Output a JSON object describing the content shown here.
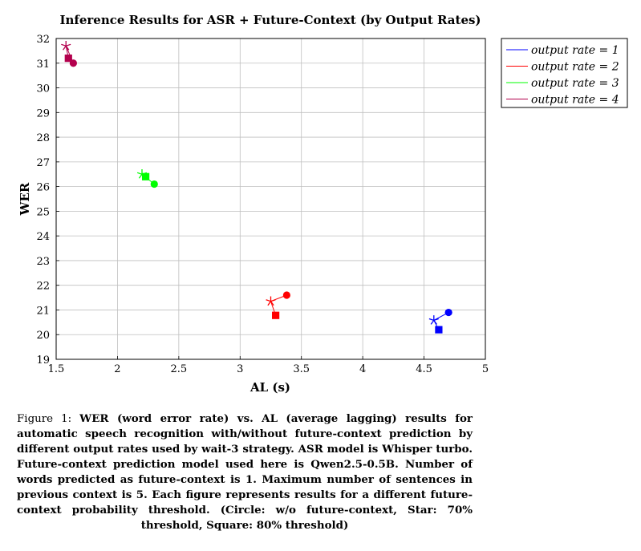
{
  "chart_data": {
    "type": "scatter",
    "title": "Inference Results for ASR + Future-Context (by Output Rates)",
    "xlabel": "AL (s)",
    "ylabel": "WER",
    "xlim": [
      1.5,
      5
    ],
    "ylim": [
      19,
      32
    ],
    "x_ticks": [
      "1.5",
      "2",
      "2.5",
      "3",
      "3.5",
      "4",
      "4.5",
      "5"
    ],
    "y_ticks": [
      "19",
      "20",
      "21",
      "22",
      "23",
      "24",
      "25",
      "26",
      "27",
      "28",
      "29",
      "30",
      "31",
      "32"
    ],
    "grid": true,
    "legend_position": "outside-right-top",
    "series": [
      {
        "name": "output rate = 1",
        "color": "#0000ff",
        "points": [
          {
            "marker": "circle",
            "x": 4.7,
            "y": 20.9
          },
          {
            "marker": "star",
            "x": 4.58,
            "y": 20.58
          },
          {
            "marker": "square",
            "x": 4.62,
            "y": 20.2
          }
        ]
      },
      {
        "name": "output rate = 2",
        "color": "#ff0000",
        "points": [
          {
            "marker": "circle",
            "x": 3.38,
            "y": 21.6
          },
          {
            "marker": "star",
            "x": 3.25,
            "y": 21.35
          },
          {
            "marker": "square",
            "x": 3.29,
            "y": 20.78
          }
        ]
      },
      {
        "name": "output rate = 3",
        "color": "#00ff00",
        "points": [
          {
            "marker": "circle",
            "x": 2.3,
            "y": 26.1
          },
          {
            "marker": "star",
            "x": 2.2,
            "y": 26.5
          },
          {
            "marker": "square",
            "x": 2.23,
            "y": 26.4
          }
        ]
      },
      {
        "name": "output rate = 4",
        "color": "#b3004d",
        "points": [
          {
            "marker": "circle",
            "x": 1.64,
            "y": 31.0
          },
          {
            "marker": "star",
            "x": 1.58,
            "y": 31.7
          },
          {
            "marker": "square",
            "x": 1.6,
            "y": 31.2
          }
        ]
      }
    ]
  },
  "caption": {
    "label": "Figure 1:",
    "text": "WER (word error rate) vs. AL (average lagging) results for automatic speech recognition with/without future-context prediction by different output rates used by wait-3 strategy. ASR model is Whisper turbo. Future-context prediction model used here is Qwen2.5-0.5B. Number of words predicted as future-context is 1. Maximum number of sentences in previous context is 5. Each figure represents results for a different future-context probability threshold. (Circle: w/o future-context, Star: 70% threshold, Square: 80% threshold)"
  }
}
